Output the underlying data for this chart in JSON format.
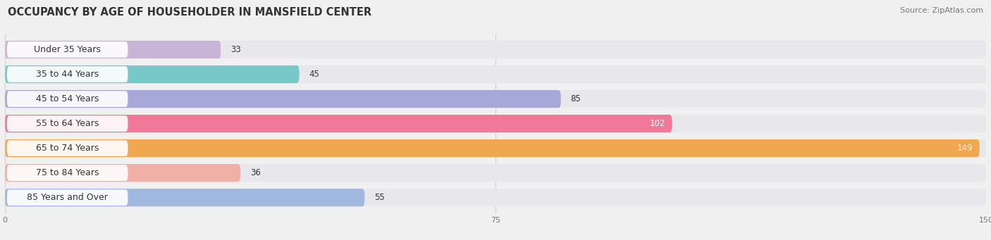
{
  "title": "OCCUPANCY BY AGE OF HOUSEHOLDER IN MANSFIELD CENTER",
  "source": "Source: ZipAtlas.com",
  "categories": [
    "Under 35 Years",
    "35 to 44 Years",
    "45 to 54 Years",
    "55 to 64 Years",
    "65 to 74 Years",
    "75 to 84 Years",
    "85 Years and Over"
  ],
  "values": [
    33,
    45,
    85,
    102,
    149,
    36,
    55
  ],
  "bar_colors": [
    "#c8b4d4",
    "#78c8c8",
    "#a8a8d8",
    "#f07898",
    "#f0a850",
    "#f0b0a8",
    "#a0b8e0"
  ],
  "xlim_min": 0,
  "xlim_max": 150,
  "xticks": [
    0,
    75,
    150
  ],
  "title_fontsize": 10.5,
  "source_fontsize": 8,
  "label_fontsize": 9,
  "value_fontsize": 8.5,
  "bg_color": "#f0f0f0",
  "bar_bg_color": "#e8e8ec",
  "white": "#ffffff",
  "dark_text": "#333333",
  "light_text": "#777777",
  "grid_color": "#d0d0d8"
}
